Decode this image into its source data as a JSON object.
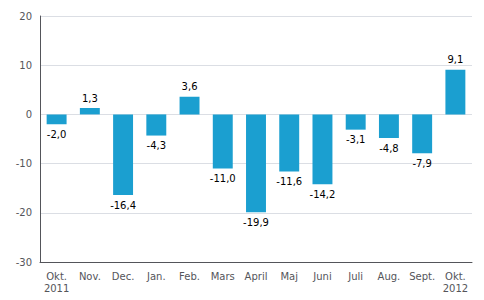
{
  "chart_data": {
    "type": "bar",
    "categories": [
      "Okt.\n2011",
      "Nov.",
      "Dec.",
      "Jan.",
      "Feb.",
      "Mars",
      "April",
      "Maj",
      "Juni",
      "Juli",
      "Aug.",
      "Sept.",
      "Okt.\n2012"
    ],
    "values": [
      -2.0,
      1.3,
      -16.4,
      -4.3,
      3.6,
      -11.0,
      -19.9,
      -11.6,
      -14.2,
      -3.1,
      -4.8,
      -7.9,
      9.1
    ],
    "value_labels": [
      "-2,0",
      "1,3",
      "-16,4",
      "-4,3",
      "3,6",
      "-11,0",
      "-19,9",
      "-11,6",
      "-14,2",
      "-3,1",
      "-4,8",
      "-7,9",
      "9,1"
    ],
    "color": "#1b9fd0",
    "ylim": [
      -30,
      20
    ],
    "yticks": [
      -30,
      -20,
      -10,
      0,
      10,
      20
    ],
    "grid": true,
    "data_labels": true
  }
}
